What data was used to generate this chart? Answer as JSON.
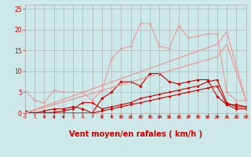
{
  "background_color": "#cce8e8",
  "grid_color": "#aaaaaa",
  "xlabel": "Vent moyen/en rafales ( km/h )",
  "xlabel_color": "#cc0000",
  "xlabel_fontsize": 7,
  "xtick_color": "#cc0000",
  "ytick_color": "#cc0000",
  "xlim": [
    0,
    23
  ],
  "ylim": [
    0,
    26
  ],
  "yticks": [
    0,
    5,
    10,
    15,
    20,
    25
  ],
  "xticks": [
    0,
    1,
    2,
    3,
    4,
    5,
    6,
    7,
    8,
    9,
    10,
    11,
    12,
    13,
    14,
    15,
    16,
    17,
    18,
    19,
    20,
    21,
    22,
    23
  ],
  "lines": [
    {
      "x": [
        0,
        1,
        2,
        3,
        4,
        5,
        6,
        7,
        8,
        9,
        10,
        11,
        12,
        13,
        14,
        15,
        16,
        17,
        18,
        19,
        20,
        21,
        22,
        23
      ],
      "y": [
        0.5,
        0.0,
        0.0,
        0.0,
        0.0,
        0.0,
        0.0,
        0.0,
        0.5,
        1.0,
        1.5,
        2.0,
        2.5,
        3.0,
        3.5,
        4.0,
        4.5,
        5.0,
        5.5,
        6.0,
        6.5,
        2.0,
        1.0,
        1.0
      ],
      "color": "#cc0000",
      "linewidth": 0.8,
      "marker": "D",
      "markersize": 1.5,
      "alpha": 1.0
    },
    {
      "x": [
        0,
        1,
        2,
        3,
        4,
        5,
        6,
        7,
        8,
        9,
        10,
        11,
        12,
        13,
        14,
        15,
        16,
        17,
        18,
        19,
        20,
        21,
        22,
        23
      ],
      "y": [
        0.3,
        0.0,
        0.0,
        0.2,
        0.5,
        1.0,
        2.5,
        2.5,
        1.0,
        1.5,
        2.0,
        2.5,
        3.5,
        4.0,
        4.5,
        5.0,
        5.5,
        6.0,
        6.5,
        7.5,
        8.0,
        2.5,
        1.5,
        1.5
      ],
      "color": "#cc0000",
      "linewidth": 0.8,
      "marker": "D",
      "markersize": 1.5,
      "alpha": 1.0
    },
    {
      "x": [
        0,
        1,
        2,
        3,
        4,
        5,
        6,
        7,
        8,
        9,
        10,
        11,
        12,
        13,
        14,
        15,
        16,
        17,
        18,
        19,
        20,
        21,
        22,
        23
      ],
      "y": [
        0.0,
        0.0,
        0.5,
        1.0,
        1.0,
        1.5,
        1.0,
        0.0,
        3.5,
        5.0,
        7.5,
        7.5,
        6.5,
        9.5,
        9.5,
        7.5,
        7.0,
        7.5,
        8.0,
        8.0,
        4.0,
        2.0,
        2.0,
        1.5
      ],
      "color": "#cc0000",
      "linewidth": 0.8,
      "marker": "D",
      "markersize": 1.8,
      "alpha": 1.0
    },
    {
      "x": [
        0,
        1,
        2,
        3,
        4,
        5,
        6,
        7,
        8,
        9,
        10,
        11,
        12,
        13,
        14,
        15,
        16,
        17,
        18,
        19,
        20,
        21,
        22,
        23
      ],
      "y": [
        5.5,
        3.0,
        2.5,
        5.5,
        5.0,
        5.0,
        5.0,
        3.0,
        5.5,
        13.0,
        15.5,
        16.0,
        21.5,
        21.5,
        16.0,
        15.5,
        21.0,
        18.0,
        18.5,
        19.0,
        19.0,
        5.0,
        3.0,
        3.0
      ],
      "color": "#ee9999",
      "linewidth": 0.8,
      "marker": "D",
      "markersize": 1.5,
      "alpha": 1.0
    },
    {
      "x": [
        0,
        20,
        21,
        23
      ],
      "y": [
        0.0,
        16.5,
        19.5,
        3.0
      ],
      "color": "#ee9999",
      "linewidth": 0.9,
      "marker": null,
      "markersize": 0,
      "alpha": 1.0
    },
    {
      "x": [
        0,
        20,
        21,
        23
      ],
      "y": [
        0.0,
        13.5,
        16.5,
        3.0
      ],
      "color": "#ee9999",
      "linewidth": 0.9,
      "marker": null,
      "markersize": 0,
      "alpha": 1.0
    }
  ],
  "arrows_x": [
    2,
    3,
    4,
    8,
    9,
    10,
    11,
    12,
    13,
    14,
    15,
    16,
    17,
    18,
    19,
    20,
    21,
    22,
    23
  ],
  "arrow_color": "#cc0000"
}
